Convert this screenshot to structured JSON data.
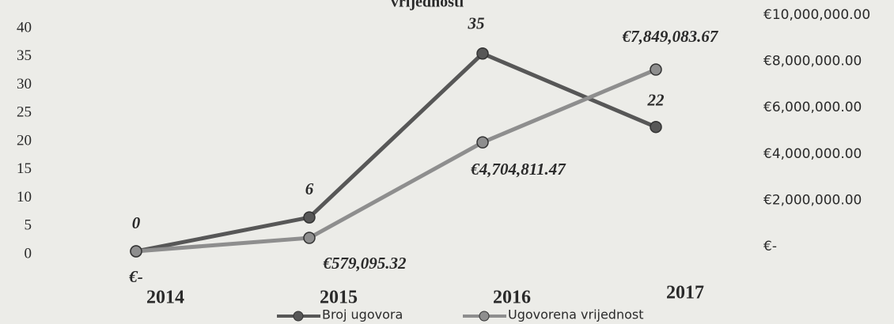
{
  "chart_data": {
    "type": "line",
    "title": "vrijednosti",
    "categories": [
      "2014",
      "2015",
      "2016",
      "2017"
    ],
    "series": [
      {
        "name": "Broj ugovora",
        "color": "#575757",
        "values": [
          0,
          6,
          35,
          22
        ]
      },
      {
        "name": "Ugovorena vrijednost",
        "color": "#8e8e8e",
        "axis": "y2",
        "values": [
          0,
          579095.32,
          4704811.47,
          7849083.67
        ],
        "value_labels": [
          "€-",
          "€579,095.32",
          "€4,704,811.47",
          "€7,849,083.67"
        ]
      }
    ],
    "ylim": [
      0,
      40
    ],
    "yticks": [
      0,
      5,
      10,
      15,
      20,
      25,
      30,
      35,
      40
    ],
    "y2lim": [
      0,
      10000000
    ],
    "y2ticks": [
      {
        "value": 0,
        "label": "€-"
      },
      {
        "value": 2000000,
        "label": "€2,000,000.00"
      },
      {
        "value": 4000000,
        "label": "€4,000,000.00"
      },
      {
        "value": 6000000,
        "label": "€6,000,000.00"
      },
      {
        "value": 8000000,
        "label": "€8,000,000.00"
      },
      {
        "value": 10000000,
        "label": "€10,000,000.00"
      }
    ],
    "legend": "bottom",
    "grid": false
  }
}
